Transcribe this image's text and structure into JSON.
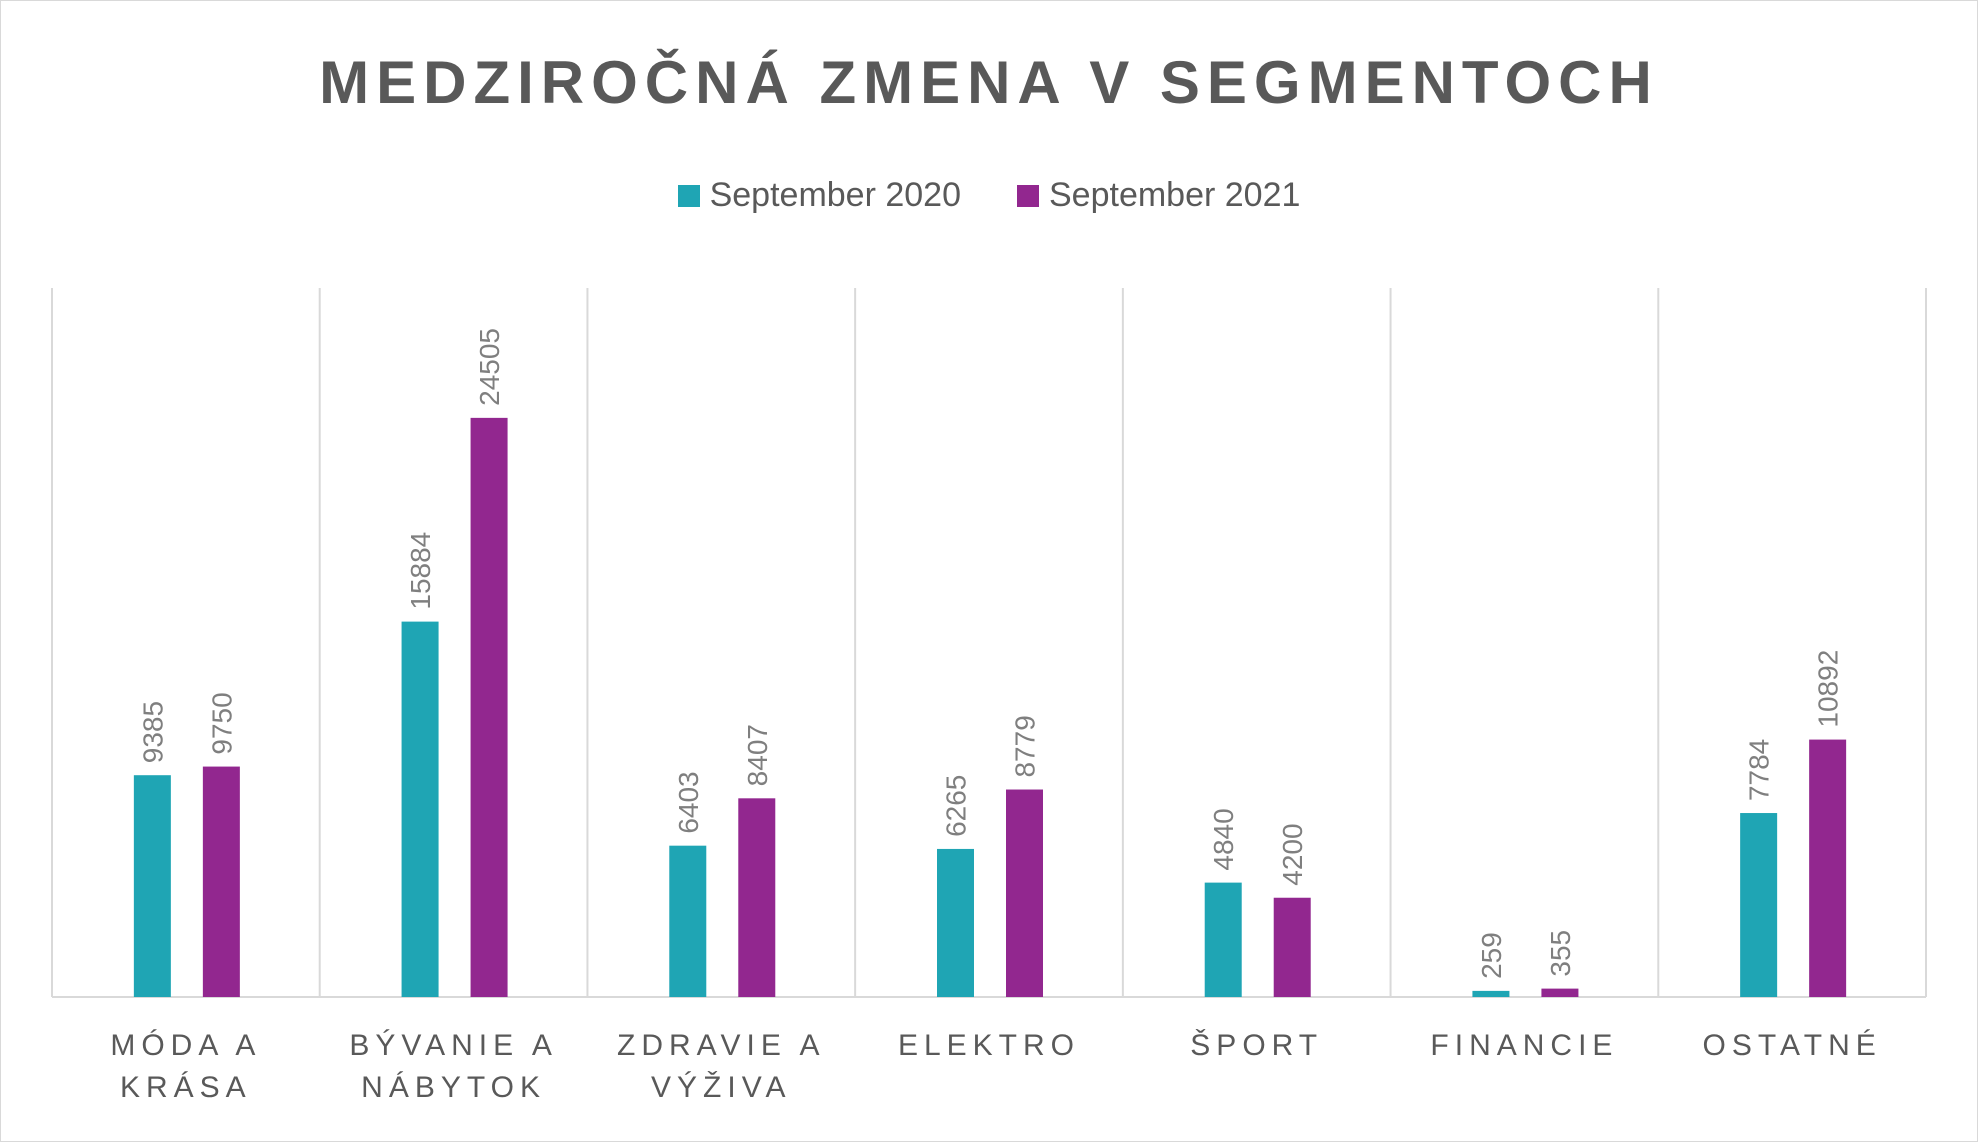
{
  "chart_data": {
    "type": "bar",
    "title": "MEDZIROČNÁ ZMENA V SEGMENTOCH",
    "categories": [
      [
        "MÓDA A",
        "KRÁSA"
      ],
      [
        "BÝVANIE A",
        "NÁBYTOK"
      ],
      [
        "ZDRAVIE A",
        "VÝŽIVA"
      ],
      [
        "ELEKTRO"
      ],
      [
        "ŠPORT"
      ],
      [
        "FINANCIE"
      ],
      [
        "OSTATNÉ"
      ]
    ],
    "series": [
      {
        "name": "September 2020",
        "color": "#1fa5b4",
        "values": [
          9385,
          15884,
          6403,
          6265,
          4840,
          259,
          7784
        ]
      },
      {
        "name": "September 2021",
        "color": "#92278f",
        "values": [
          9750,
          24505,
          8407,
          8779,
          4200,
          355,
          10892
        ]
      }
    ],
    "ylim": [
      0,
      30000
    ],
    "legend": "top-center",
    "grid": "vertical category separators"
  }
}
